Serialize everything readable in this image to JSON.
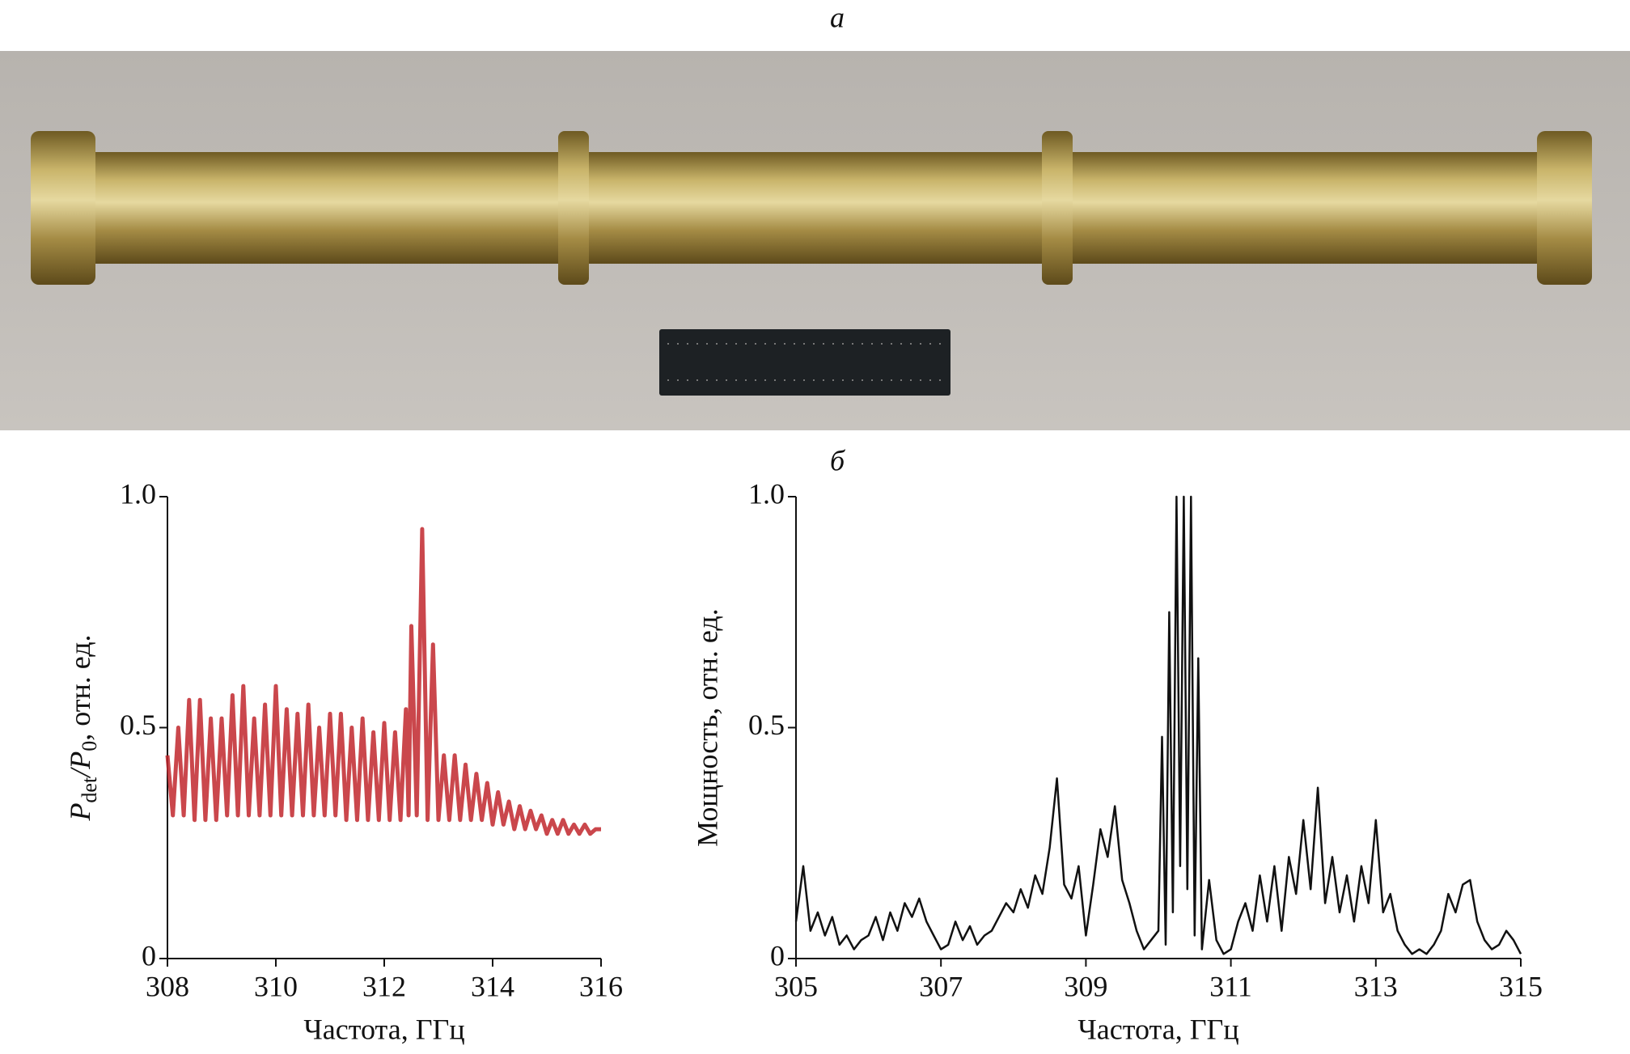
{
  "panel_labels": {
    "top": "а",
    "bottom": "б"
  },
  "chart_data": [
    {
      "type": "line",
      "ylabel_parts": [
        "P",
        "det",
        "/P",
        "0",
        ", отн. ед."
      ],
      "xlabel": "Частота, ГГц",
      "color": "#c1272d",
      "xlim": [
        308,
        316
      ],
      "xticks": [
        308,
        310,
        312,
        314,
        316
      ],
      "ylim": [
        0,
        1
      ],
      "yticks": [
        0,
        0.5,
        {
          "value": 1,
          "label": "1.0"
        }
      ],
      "x": [
        308.0,
        308.1,
        308.2,
        308.3,
        308.4,
        308.5,
        308.6,
        308.7,
        308.8,
        308.9,
        309.0,
        309.1,
        309.2,
        309.3,
        309.4,
        309.5,
        309.6,
        309.7,
        309.8,
        309.9,
        310.0,
        310.1,
        310.2,
        310.3,
        310.4,
        310.5,
        310.6,
        310.7,
        310.8,
        310.9,
        311.0,
        311.1,
        311.2,
        311.3,
        311.4,
        311.5,
        311.6,
        311.7,
        311.8,
        311.9,
        312.0,
        312.1,
        312.2,
        312.3,
        312.4,
        312.45,
        312.5,
        312.6,
        312.7,
        312.8,
        312.9,
        313.0,
        313.1,
        313.2,
        313.3,
        313.4,
        313.5,
        313.6,
        313.7,
        313.8,
        313.9,
        314.0,
        314.1,
        314.2,
        314.3,
        314.4,
        314.5,
        314.6,
        314.7,
        314.8,
        314.9,
        315.0,
        315.1,
        315.2,
        315.3,
        315.4,
        315.5,
        315.6,
        315.7,
        315.8,
        315.9,
        316.0
      ],
      "values": [
        0.44,
        0.31,
        0.5,
        0.31,
        0.56,
        0.3,
        0.56,
        0.3,
        0.52,
        0.3,
        0.52,
        0.31,
        0.57,
        0.31,
        0.59,
        0.31,
        0.52,
        0.31,
        0.55,
        0.31,
        0.59,
        0.31,
        0.54,
        0.31,
        0.53,
        0.31,
        0.55,
        0.31,
        0.5,
        0.31,
        0.53,
        0.31,
        0.53,
        0.3,
        0.5,
        0.3,
        0.52,
        0.3,
        0.49,
        0.3,
        0.51,
        0.3,
        0.49,
        0.3,
        0.54,
        0.31,
        0.72,
        0.31,
        0.93,
        0.3,
        0.68,
        0.3,
        0.44,
        0.3,
        0.44,
        0.3,
        0.42,
        0.3,
        0.4,
        0.3,
        0.38,
        0.29,
        0.36,
        0.29,
        0.34,
        0.28,
        0.33,
        0.28,
        0.32,
        0.28,
        0.31,
        0.27,
        0.3,
        0.27,
        0.3,
        0.27,
        0.29,
        0.27,
        0.29,
        0.27,
        0.28,
        0.28
      ]
    },
    {
      "type": "line",
      "ylabel": "Мощность, отн. ед.",
      "xlabel": "Частота, ГГц",
      "color": "#111111",
      "xlim": [
        305,
        315
      ],
      "xticks": [
        305,
        307,
        309,
        311,
        313,
        315
      ],
      "ylim": [
        0,
        1
      ],
      "yticks": [
        0,
        0.5,
        {
          "value": 1,
          "label": "1.0"
        }
      ],
      "x": [
        305.0,
        305.1,
        305.2,
        305.3,
        305.4,
        305.5,
        305.6,
        305.7,
        305.8,
        305.9,
        306.0,
        306.1,
        306.2,
        306.3,
        306.4,
        306.5,
        306.6,
        306.7,
        306.8,
        306.9,
        307.0,
        307.1,
        307.2,
        307.3,
        307.4,
        307.5,
        307.6,
        307.7,
        307.8,
        307.9,
        308.0,
        308.1,
        308.2,
        308.3,
        308.4,
        308.5,
        308.6,
        308.7,
        308.8,
        308.9,
        309.0,
        309.1,
        309.2,
        309.3,
        309.4,
        309.5,
        309.6,
        309.7,
        309.8,
        309.9,
        310.0,
        310.05,
        310.1,
        310.15,
        310.2,
        310.25,
        310.3,
        310.35,
        310.4,
        310.45,
        310.5,
        310.55,
        310.6,
        310.7,
        310.8,
        310.9,
        311.0,
        311.1,
        311.2,
        311.3,
        311.4,
        311.5,
        311.6,
        311.7,
        311.8,
        311.9,
        312.0,
        312.1,
        312.2,
        312.3,
        312.4,
        312.5,
        312.6,
        312.7,
        312.8,
        312.9,
        313.0,
        313.1,
        313.2,
        313.3,
        313.4,
        313.5,
        313.6,
        313.7,
        313.8,
        313.9,
        314.0,
        314.1,
        314.2,
        314.3,
        314.4,
        314.5,
        314.6,
        314.7,
        314.8,
        314.9,
        315.0
      ],
      "values": [
        0.08,
        0.2,
        0.06,
        0.1,
        0.05,
        0.09,
        0.03,
        0.05,
        0.02,
        0.04,
        0.05,
        0.09,
        0.04,
        0.1,
        0.06,
        0.12,
        0.09,
        0.13,
        0.08,
        0.05,
        0.02,
        0.03,
        0.08,
        0.04,
        0.07,
        0.03,
        0.05,
        0.06,
        0.09,
        0.12,
        0.1,
        0.15,
        0.11,
        0.18,
        0.14,
        0.24,
        0.39,
        0.16,
        0.13,
        0.2,
        0.05,
        0.16,
        0.28,
        0.22,
        0.33,
        0.17,
        0.12,
        0.06,
        0.02,
        0.04,
        0.06,
        0.48,
        0.03,
        0.75,
        0.1,
        1.0,
        0.2,
        1.0,
        0.15,
        1.0,
        0.05,
        0.65,
        0.02,
        0.17,
        0.04,
        0.01,
        0.02,
        0.08,
        0.12,
        0.06,
        0.18,
        0.08,
        0.2,
        0.06,
        0.22,
        0.14,
        0.3,
        0.15,
        0.37,
        0.12,
        0.22,
        0.1,
        0.18,
        0.08,
        0.2,
        0.12,
        0.3,
        0.1,
        0.14,
        0.06,
        0.03,
        0.01,
        0.02,
        0.01,
        0.03,
        0.06,
        0.14,
        0.1,
        0.16,
        0.17,
        0.08,
        0.04,
        0.02,
        0.03,
        0.06,
        0.04,
        0.01
      ]
    }
  ]
}
